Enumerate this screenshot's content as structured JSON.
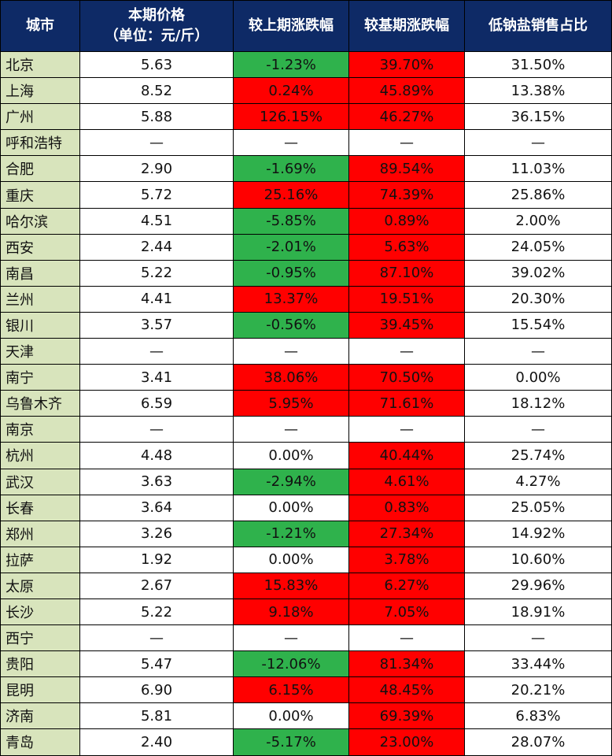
{
  "table": {
    "header": [
      "城市",
      "本期价格\n（单位：元/斤）",
      "较上期涨跌幅",
      "较基期涨跌幅",
      "低钠盐销售占比"
    ],
    "rows": [
      [
        "北京",
        "5.63",
        "-1.23%",
        "39.70%",
        "31.50%"
      ],
      [
        "上海",
        "8.52",
        "0.24%",
        "45.89%",
        "13.38%"
      ],
      [
        "广州",
        "5.88",
        "126.15%",
        "46.27%",
        "36.15%"
      ],
      [
        "呼和浩特",
        "—",
        "—",
        "—",
        "—"
      ],
      [
        "合肥",
        "2.90",
        "-1.69%",
        "89.54%",
        "11.03%"
      ],
      [
        "重庆",
        "5.72",
        "25.16%",
        "74.39%",
        "25.86%"
      ],
      [
        "哈尔滨",
        "4.51",
        "-5.85%",
        "0.89%",
        "2.00%"
      ],
      [
        "西安",
        "2.44",
        "-2.01%",
        "5.63%",
        "24.05%"
      ],
      [
        "南昌",
        "5.22",
        "-0.95%",
        "87.10%",
        "39.02%"
      ],
      [
        "兰州",
        "4.41",
        "13.37%",
        "19.51%",
        "20.30%"
      ],
      [
        "银川",
        "3.57",
        "-0.56%",
        "39.45%",
        "15.54%"
      ],
      [
        "天津",
        "—",
        "—",
        "—",
        "—"
      ],
      [
        "南宁",
        "3.41",
        "38.06%",
        "70.50%",
        "0.00%"
      ],
      [
        "乌鲁木齐",
        "6.59",
        "5.95%",
        "71.61%",
        "18.12%"
      ],
      [
        "南京",
        "—",
        "—",
        "—",
        "—"
      ],
      [
        "杭州",
        "4.48",
        "0.00%",
        "40.44%",
        "25.74%"
      ],
      [
        "武汉",
        "3.63",
        "-2.94%",
        "4.61%",
        "4.27%"
      ],
      [
        "长春",
        "3.64",
        "0.00%",
        "0.83%",
        "25.05%"
      ],
      [
        "郑州",
        "3.26",
        "-1.21%",
        "27.34%",
        "14.92%"
      ],
      [
        "拉萨",
        "1.92",
        "0.00%",
        "3.78%",
        "10.60%"
      ],
      [
        "太原",
        "2.67",
        "15.83%",
        "6.27%",
        "29.96%"
      ],
      [
        "长沙",
        "5.22",
        "9.18%",
        "7.05%",
        "18.91%"
      ],
      [
        "西宁",
        "—",
        "—",
        "—",
        "—"
      ],
      [
        "贵阳",
        "5.47",
        "-12.06%",
        "81.34%",
        "33.44%"
      ],
      [
        "昆明",
        "6.90",
        "6.15%",
        "48.45%",
        "20.21%"
      ],
      [
        "济南",
        "5.81",
        "0.00%",
        "69.39%",
        "6.83%"
      ],
      [
        "青岛",
        "2.40",
        "-5.17%",
        "23.00%",
        "28.07%"
      ]
    ]
  }
}
